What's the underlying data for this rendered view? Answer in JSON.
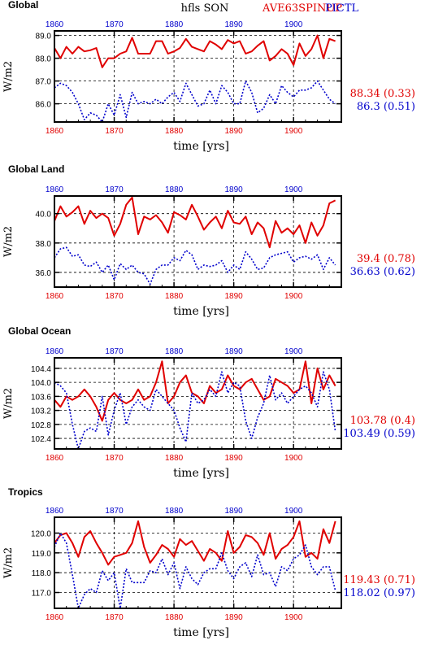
{
  "header": {
    "center_title": "hfls SON",
    "right_title_a": "AVE63SPINUP",
    "right_title_b": "PICTL"
  },
  "colors": {
    "series_a": "#e00000",
    "series_b": "#0000cc",
    "axis": "#000000"
  },
  "chart_data": [
    {
      "type": "line",
      "title": "Global",
      "xlabel": "time [yrs]",
      "ylabel": "W/m2",
      "xlim": [
        1860,
        1908
      ],
      "ylim": [
        85.2,
        89.2
      ],
      "x_ticks": [
        1860,
        1870,
        1880,
        1890,
        1900
      ],
      "y_ticks": [
        "86.0",
        "87.0",
        "88.0",
        "89.0"
      ],
      "y_tick_values": [
        86.0,
        87.0,
        88.0,
        89.0
      ],
      "grid": true,
      "x_start": 1860,
      "series": [
        {
          "name": "AVE63SPINUP",
          "color": "#e00000",
          "dash": "solid",
          "summary": "88.34 (0.33)",
          "values": [
            88.45,
            88.0,
            88.5,
            88.2,
            88.5,
            88.3,
            88.35,
            88.45,
            87.6,
            88.0,
            88.0,
            88.2,
            88.3,
            88.9,
            88.2,
            88.2,
            88.2,
            88.75,
            88.75,
            88.2,
            88.3,
            88.45,
            88.85,
            88.5,
            88.4,
            88.3,
            88.75,
            88.6,
            88.4,
            88.8,
            88.65,
            88.75,
            88.2,
            88.3,
            88.55,
            88.75,
            87.9,
            88.1,
            88.4,
            88.2,
            87.7,
            88.65,
            88.1,
            88.4,
            89.0,
            88.0,
            88.85,
            88.75
          ]
        },
        {
          "name": "PICTL",
          "color": "#0000cc",
          "dash": "dotted",
          "summary": "86.3 (0.51)",
          "values": [
            86.7,
            86.9,
            86.8,
            86.5,
            86.0,
            85.3,
            85.6,
            85.5,
            85.2,
            86.0,
            85.5,
            86.4,
            85.4,
            86.5,
            86.0,
            86.1,
            86.0,
            86.2,
            86.0,
            86.3,
            86.5,
            86.1,
            86.9,
            86.4,
            85.9,
            86.0,
            86.6,
            86.0,
            86.8,
            86.5,
            86.0,
            86.0,
            87.0,
            86.5,
            85.6,
            85.8,
            86.4,
            86.0,
            86.8,
            86.5,
            86.3,
            86.6,
            86.6,
            86.7,
            87.0,
            86.6,
            86.2,
            86.0
          ]
        }
      ]
    },
    {
      "type": "line",
      "title": "Global Land",
      "xlabel": "time [yrs]",
      "ylabel": "W/m2",
      "xlim": [
        1860,
        1908
      ],
      "ylim": [
        35.0,
        41.2
      ],
      "x_ticks": [
        1860,
        1870,
        1880,
        1890,
        1900
      ],
      "y_ticks": [
        "36.0",
        "38.0",
        "40.0"
      ],
      "y_tick_values": [
        36.0,
        38.0,
        40.0
      ],
      "grid": true,
      "x_start": 1860,
      "series": [
        {
          "name": "AVE63SPINUP",
          "color": "#e00000",
          "dash": "solid",
          "summary": "39.4 (0.78)",
          "values": [
            39.5,
            40.5,
            39.8,
            40.1,
            40.5,
            39.3,
            40.2,
            39.7,
            40.0,
            39.7,
            38.5,
            39.3,
            40.6,
            41.1,
            38.6,
            39.8,
            39.6,
            39.9,
            39.4,
            38.7,
            40.1,
            39.9,
            39.6,
            40.6,
            39.8,
            38.9,
            39.4,
            39.8,
            39.0,
            40.2,
            39.4,
            39.3,
            39.8,
            38.6,
            39.4,
            39.0,
            37.7,
            39.5,
            38.7,
            39.0,
            38.6,
            39.2,
            38.0,
            39.4,
            38.5,
            39.2,
            40.7,
            40.9
          ]
        },
        {
          "name": "PICTL",
          "color": "#0000cc",
          "dash": "dotted",
          "summary": "36.63 (0.62)",
          "values": [
            37.0,
            37.6,
            37.7,
            37.1,
            37.2,
            36.5,
            36.4,
            36.7,
            36.0,
            36.5,
            35.5,
            36.6,
            36.2,
            36.5,
            36.0,
            35.9,
            35.2,
            36.2,
            36.5,
            36.5,
            37.0,
            36.8,
            37.5,
            37.2,
            36.2,
            36.5,
            36.4,
            36.5,
            36.8,
            36.0,
            36.5,
            36.2,
            37.4,
            36.9,
            36.2,
            36.3,
            37.0,
            37.2,
            37.3,
            37.4,
            36.7,
            37.0,
            37.1,
            36.9,
            37.2,
            36.2,
            37.0,
            36.5
          ]
        }
      ]
    },
    {
      "type": "line",
      "title": "Global Ocean",
      "xlabel": "time [yrs]",
      "ylabel": "W/m2",
      "xlim": [
        1860,
        1908
      ],
      "ylim": [
        102.1,
        104.7
      ],
      "x_ticks": [
        1860,
        1870,
        1880,
        1890,
        1900
      ],
      "y_ticks": [
        "102.4",
        "102.8",
        "103.2",
        "103.6",
        "104.0",
        "104.4"
      ],
      "y_tick_values": [
        102.4,
        102.8,
        103.2,
        103.6,
        104.0,
        104.4
      ],
      "grid": true,
      "x_start": 1860,
      "series": [
        {
          "name": "AVE63SPINUP",
          "color": "#e00000",
          "dash": "solid",
          "summary": "103.78 (0.4)",
          "values": [
            103.5,
            103.3,
            103.6,
            103.5,
            103.6,
            103.8,
            103.6,
            103.3,
            102.9,
            103.5,
            103.7,
            103.5,
            103.4,
            103.5,
            103.8,
            103.5,
            103.6,
            104.0,
            104.6,
            103.4,
            103.6,
            104.0,
            104.2,
            103.7,
            103.6,
            103.4,
            103.9,
            103.7,
            103.8,
            104.2,
            103.9,
            103.8,
            104.0,
            104.1,
            103.8,
            103.5,
            103.6,
            104.1,
            104.0,
            103.9,
            103.7,
            103.8,
            104.6,
            103.4,
            104.4,
            103.8,
            104.2,
            103.9
          ]
        },
        {
          "name": "PICTL",
          "color": "#0000cc",
          "dash": "dotted",
          "summary": "103.49 (0.59)",
          "values": [
            104.0,
            103.9,
            103.7,
            102.8,
            102.1,
            102.6,
            102.7,
            102.6,
            103.6,
            102.5,
            103.2,
            103.7,
            102.8,
            103.3,
            103.5,
            103.3,
            103.2,
            103.8,
            103.6,
            103.4,
            103.2,
            102.7,
            102.3,
            103.7,
            103.4,
            103.5,
            103.8,
            103.6,
            104.3,
            103.7,
            104.0,
            103.9,
            102.9,
            102.4,
            103.0,
            103.4,
            104.2,
            103.5,
            103.7,
            103.4,
            103.6,
            103.8,
            103.9,
            103.7,
            103.3,
            104.3,
            103.8,
            102.6
          ]
        }
      ]
    },
    {
      "type": "line",
      "title": "Tropics",
      "xlabel": "time [yrs]",
      "ylabel": "W/m2",
      "xlim": [
        1860,
        1908
      ],
      "ylim": [
        116.2,
        120.8
      ],
      "x_ticks": [
        1860,
        1870,
        1880,
        1890,
        1900
      ],
      "y_ticks": [
        "117.0",
        "118.0",
        "119.0",
        "120.0"
      ],
      "y_tick_values": [
        117.0,
        118.0,
        119.0,
        120.0
      ],
      "grid": true,
      "x_start": 1860,
      "series": [
        {
          "name": "AVE63SPINUP",
          "color": "#e00000",
          "dash": "solid",
          "summary": "119.43 (0.71)",
          "values": [
            119.5,
            119.9,
            120.0,
            119.5,
            118.8,
            119.8,
            120.1,
            119.5,
            119.0,
            118.4,
            118.8,
            118.9,
            119.0,
            119.5,
            120.6,
            119.3,
            118.5,
            118.9,
            119.4,
            119.2,
            118.8,
            119.7,
            119.4,
            119.6,
            119.1,
            118.6,
            119.2,
            119.0,
            118.6,
            120.1,
            119.0,
            119.3,
            119.9,
            119.8,
            119.5,
            118.9,
            120.0,
            118.7,
            119.2,
            119.4,
            119.8,
            120.6,
            118.8,
            119.0,
            118.7,
            120.2,
            119.5,
            120.6
          ]
        },
        {
          "name": "PICTL",
          "color": "#0000cc",
          "dash": "dotted",
          "summary": "118.02 (0.97)",
          "values": [
            119.3,
            120.0,
            119.5,
            117.9,
            116.2,
            116.9,
            117.2,
            117.0,
            118.1,
            117.6,
            118.0,
            116.2,
            118.2,
            117.5,
            117.5,
            117.5,
            118.1,
            118.0,
            118.7,
            117.9,
            118.5,
            117.2,
            118.3,
            117.7,
            117.4,
            118.0,
            118.2,
            118.2,
            119.0,
            118.1,
            117.7,
            118.3,
            118.5,
            117.8,
            118.9,
            117.9,
            118.0,
            117.3,
            118.3,
            118.1,
            118.7,
            118.9,
            119.4,
            118.3,
            117.9,
            118.3,
            118.3,
            117.1
          ]
        }
      ]
    }
  ]
}
